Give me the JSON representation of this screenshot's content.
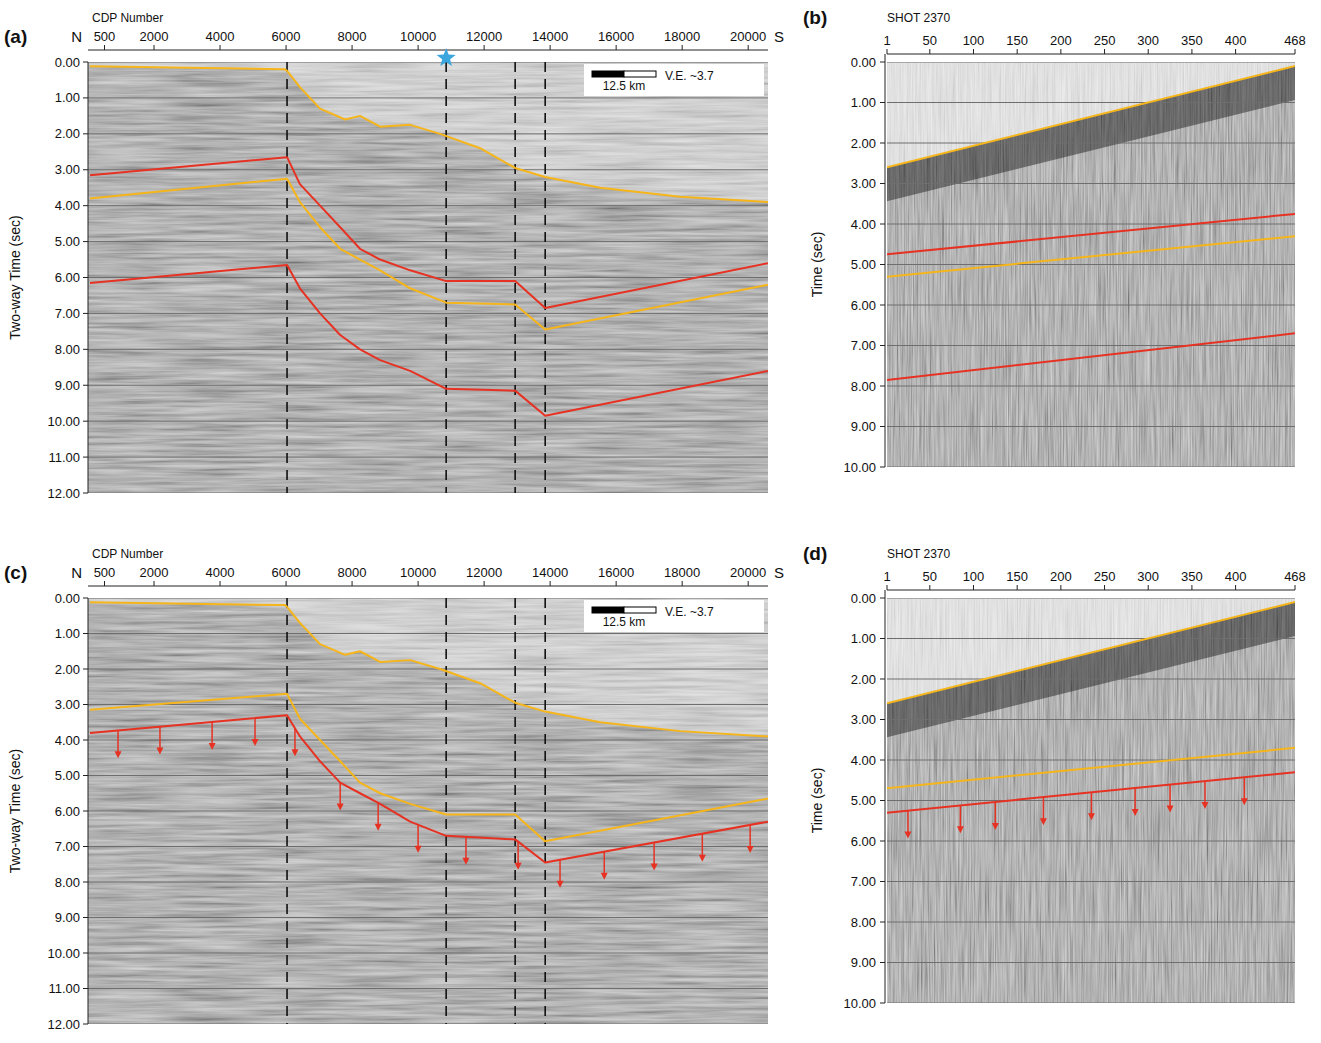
{
  "chart_data": [
    {
      "type": "line",
      "panel": "(a)",
      "xlabel": "CDP Number",
      "ylabel": "Two-way Time (sec)",
      "direction_labels": [
        "N",
        "S"
      ],
      "scale_bar": "12.5 km",
      "ve_label": "V.E. ~3.7",
      "xlim": [
        0,
        20600
      ],
      "xticks": [
        500,
        2000,
        4000,
        6000,
        8000,
        10000,
        12000,
        14000,
        16000,
        18000,
        20000
      ],
      "ylim": [
        12,
        0
      ],
      "yticks": [
        {
          "value": 0,
          "label": "0.00"
        },
        {
          "value": 1,
          "label": "1.00"
        },
        {
          "value": 2,
          "label": "2.00"
        },
        {
          "value": 3,
          "label": "3.00"
        },
        {
          "value": 4,
          "label": "4.00"
        },
        {
          "value": 5,
          "label": "5.00"
        },
        {
          "value": 6,
          "label": "6.00"
        },
        {
          "value": 7,
          "label": "7.00"
        },
        {
          "value": 8,
          "label": "8.00"
        },
        {
          "value": 9,
          "label": "9.00"
        },
        {
          "value": 10,
          "label": "10.00"
        },
        {
          "value": 11,
          "label": "11.00"
        },
        {
          "value": 12,
          "label": "12.00"
        }
      ],
      "grid": true,
      "vlines": [
        6030,
        10850,
        12940,
        13850
      ],
      "star": {
        "x": 10850,
        "color": "#3ba7de"
      },
      "series": [
        {
          "color": "#f5b51b",
          "x": [
            60,
            5970,
            6030,
            6420,
            7030,
            7790,
            8240,
            8850,
            9760,
            10670,
            11880,
            12940,
            13850,
            15520,
            17940,
            20600
          ],
          "values": [
            0.12,
            0.2,
            0.25,
            0.7,
            1.3,
            1.6,
            1.5,
            1.8,
            1.75,
            2.0,
            2.4,
            2.95,
            3.2,
            3.5,
            3.75,
            3.9
          ]
        },
        {
          "color": "#e63223",
          "x": [
            60,
            6030,
            6420,
            7030,
            7640,
            8240,
            8850,
            9760,
            10850,
            12940,
            13850,
            20600
          ],
          "values": [
            3.15,
            2.65,
            3.4,
            4.0,
            4.6,
            5.2,
            5.5,
            5.8,
            6.1,
            6.1,
            6.85,
            5.6
          ]
        },
        {
          "color": "#f5b51b",
          "x": [
            60,
            6030,
            6420,
            7030,
            7640,
            8240,
            8850,
            9760,
            10850,
            12940,
            13850,
            20600
          ],
          "values": [
            3.8,
            3.25,
            3.9,
            4.6,
            5.2,
            5.5,
            5.8,
            6.3,
            6.7,
            6.75,
            7.45,
            6.2
          ]
        },
        {
          "color": "#e63223",
          "x": [
            60,
            6030,
            6420,
            7030,
            7640,
            8240,
            8850,
            9760,
            10850,
            12940,
            13850,
            20600
          ],
          "values": [
            6.15,
            5.65,
            6.3,
            7.0,
            7.6,
            8.0,
            8.3,
            8.6,
            9.1,
            9.15,
            9.85,
            8.6
          ]
        }
      ]
    },
    {
      "type": "line",
      "panel": "(b)",
      "xlabel": "SHOT 2370",
      "ylabel": "Time (sec)",
      "xlim": [
        1,
        468
      ],
      "xticks": [
        1,
        50,
        100,
        150,
        200,
        250,
        300,
        350,
        400,
        468
      ],
      "ylim": [
        10,
        0
      ],
      "yticks": [
        {
          "value": 0,
          "label": "0.00"
        },
        {
          "value": 1,
          "label": "1.00"
        },
        {
          "value": 2,
          "label": "2.00"
        },
        {
          "value": 3,
          "label": "3.00"
        },
        {
          "value": 4,
          "label": "4.00"
        },
        {
          "value": 5,
          "label": "5.00"
        },
        {
          "value": 6,
          "label": "6.00"
        },
        {
          "value": 7,
          "label": "7.00"
        },
        {
          "value": 8,
          "label": "8.00"
        },
        {
          "value": 9,
          "label": "9.00"
        },
        {
          "value": 10,
          "label": "10.00"
        }
      ],
      "grid": true,
      "series": [
        {
          "color": "#f5b51b",
          "x": [
            1,
            468
          ],
          "values": [
            2.6,
            0.1
          ]
        },
        {
          "color": "#e63223",
          "x": [
            1,
            468
          ],
          "values": [
            4.75,
            3.75
          ]
        },
        {
          "color": "#f5b51b",
          "x": [
            1,
            468
          ],
          "values": [
            5.3,
            4.3
          ]
        },
        {
          "color": "#e63223",
          "x": [
            1,
            468
          ],
          "values": [
            7.85,
            6.7
          ]
        }
      ]
    },
    {
      "type": "line",
      "panel": "(c)",
      "xlabel": "CDP Number",
      "ylabel": "Two-way Time (sec)",
      "direction_labels": [
        "N",
        "S"
      ],
      "scale_bar": "12.5 km",
      "ve_label": "V.E. ~3.7",
      "xlim": [
        0,
        20600
      ],
      "xticks": [
        500,
        2000,
        4000,
        6000,
        8000,
        10000,
        12000,
        14000,
        16000,
        18000,
        20000
      ],
      "ylim": [
        12,
        0
      ],
      "yticks": [
        {
          "value": 0,
          "label": "0.00"
        },
        {
          "value": 1,
          "label": "1.00"
        },
        {
          "value": 2,
          "label": "2.00"
        },
        {
          "value": 3,
          "label": "3.00"
        },
        {
          "value": 4,
          "label": "4.00"
        },
        {
          "value": 5,
          "label": "5.00"
        },
        {
          "value": 6,
          "label": "6.00"
        },
        {
          "value": 7,
          "label": "7.00"
        },
        {
          "value": 8,
          "label": "8.00"
        },
        {
          "value": 9,
          "label": "9.00"
        },
        {
          "value": 10,
          "label": "10.00"
        },
        {
          "value": 11,
          "label": "11.00"
        },
        {
          "value": 12,
          "label": "12.00"
        }
      ],
      "grid": true,
      "vlines": [
        6030,
        10850,
        12940,
        13850
      ],
      "series": [
        {
          "color": "#f5b51b",
          "x": [
            60,
            5970,
            6030,
            6420,
            7030,
            7790,
            8240,
            8850,
            9760,
            10670,
            11880,
            12940,
            13850,
            15520,
            17940,
            20600
          ],
          "values": [
            0.12,
            0.2,
            0.25,
            0.7,
            1.3,
            1.6,
            1.5,
            1.8,
            1.75,
            2.0,
            2.4,
            2.95,
            3.2,
            3.5,
            3.75,
            3.9
          ]
        },
        {
          "color": "#f5b51b",
          "x": [
            60,
            6030,
            6420,
            7030,
            7640,
            8240,
            8850,
            9760,
            10850,
            12940,
            13850,
            20600
          ],
          "values": [
            3.15,
            2.7,
            3.4,
            4.0,
            4.6,
            5.2,
            5.5,
            5.8,
            6.1,
            6.1,
            6.85,
            5.65
          ]
        },
        {
          "color": "#e63223",
          "x": [
            60,
            6030,
            6420,
            7030,
            7640,
            8240,
            8850,
            9760,
            10850,
            12940,
            13850,
            20600
          ],
          "values": [
            3.8,
            3.3,
            3.9,
            4.6,
            5.2,
            5.5,
            5.8,
            6.3,
            6.7,
            6.8,
            7.45,
            6.3
          ],
          "arrows_x": [
            910,
            2180,
            3760,
            5060,
            6270,
            7640,
            8790,
            10000,
            11450,
            13030,
            14300,
            15640,
            17150,
            18610,
            20060
          ]
        }
      ]
    },
    {
      "type": "line",
      "panel": "(d)",
      "xlabel": "SHOT 2370",
      "ylabel": "Time (sec)",
      "xlim": [
        1,
        468
      ],
      "xticks": [
        1,
        50,
        100,
        150,
        200,
        250,
        300,
        350,
        400,
        468
      ],
      "ylim": [
        10,
        0
      ],
      "yticks": [
        {
          "value": 0,
          "label": "0.00"
        },
        {
          "value": 1,
          "label": "1.00"
        },
        {
          "value": 2,
          "label": "2.00"
        },
        {
          "value": 3,
          "label": "3.00"
        },
        {
          "value": 4,
          "label": "4.00"
        },
        {
          "value": 5,
          "label": "5.00"
        },
        {
          "value": 6,
          "label": "6.00"
        },
        {
          "value": 7,
          "label": "7.00"
        },
        {
          "value": 8,
          "label": "8.00"
        },
        {
          "value": 9,
          "label": "9.00"
        },
        {
          "value": 10,
          "label": "10.00"
        }
      ],
      "grid": true,
      "series": [
        {
          "color": "#f5b51b",
          "x": [
            1,
            468
          ],
          "values": [
            2.6,
            0.1
          ]
        },
        {
          "color": "#f5b51b",
          "x": [
            1,
            468
          ],
          "values": [
            4.7,
            3.7
          ]
        },
        {
          "color": "#e63223",
          "x": [
            1,
            468
          ],
          "values": [
            5.3,
            4.3
          ],
          "arrows_x": [
            25,
            85,
            125,
            180,
            235,
            285,
            325,
            365,
            410
          ]
        }
      ]
    }
  ]
}
